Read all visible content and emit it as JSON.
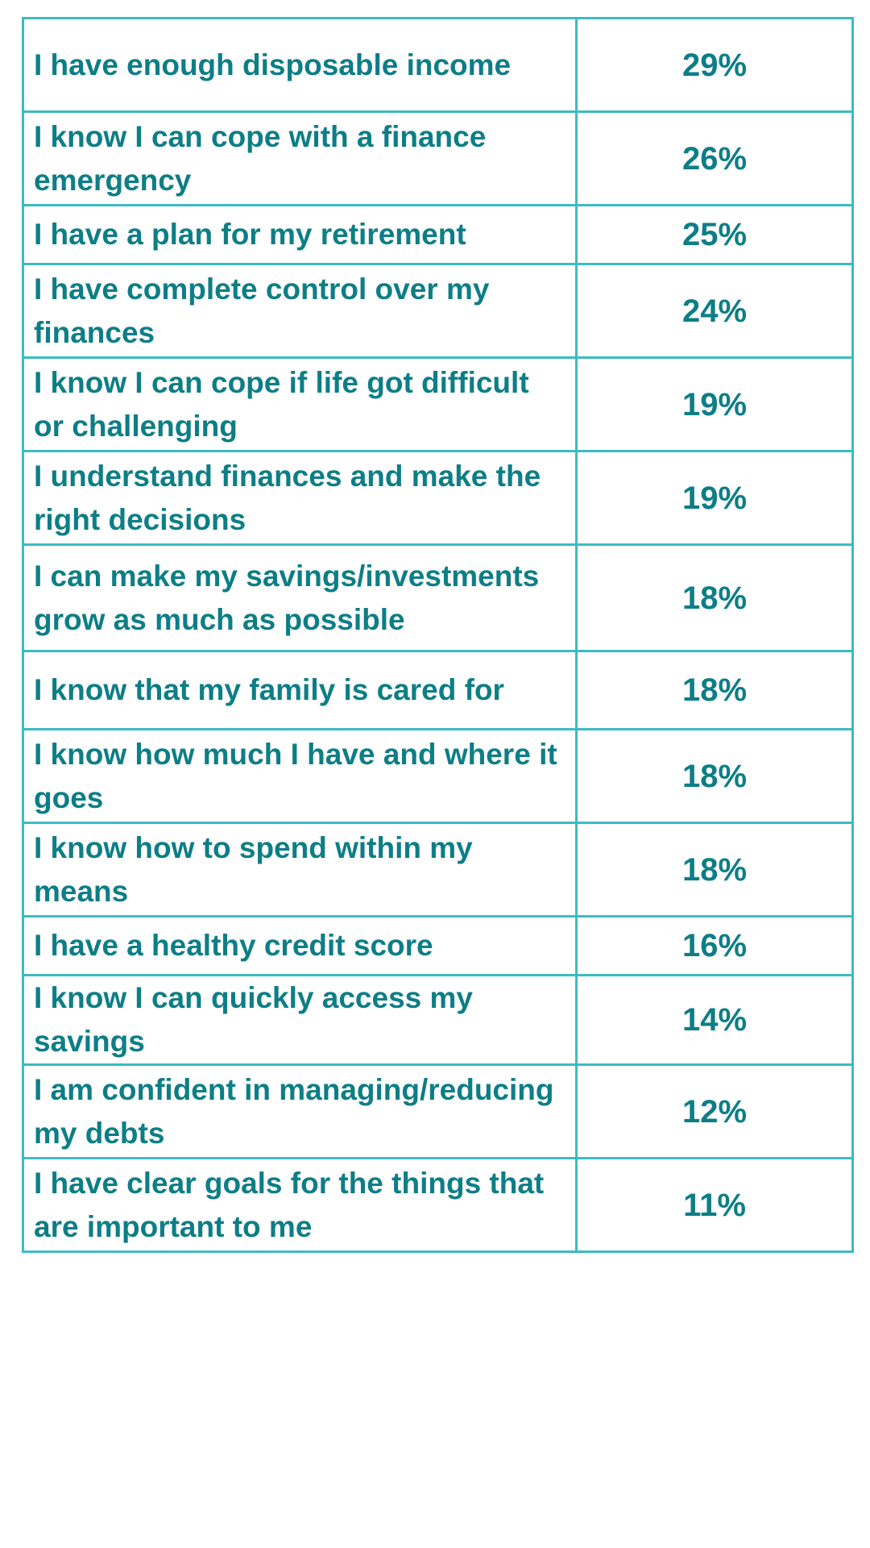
{
  "table": {
    "colors": {
      "border": "#3bbcc1",
      "text": "#0d7e86",
      "background": "#ffffff"
    },
    "rows": [
      {
        "statement": "I have enough disposable income",
        "value": "29%"
      },
      {
        "statement": "I know I can cope with a finance emergency",
        "value": "26%"
      },
      {
        "statement": "I have a plan for my retirement",
        "value": "25%"
      },
      {
        "statement": "I have complete control over my finances",
        "value": "24%"
      },
      {
        "statement": "I know I can cope if life got difficult or challenging",
        "value": "19%"
      },
      {
        "statement": "I understand finances and make the right decisions",
        "value": "19%"
      },
      {
        "statement": "I can make my savings/investments grow as much as possible",
        "value": "18%"
      },
      {
        "statement": "I know that my family is cared for",
        "value": "18%"
      },
      {
        "statement": "I know how much I have and where it goes",
        "value": "18%"
      },
      {
        "statement": "I know how to spend within my means",
        "value": "18%"
      },
      {
        "statement": "I have a healthy credit score",
        "value": "16%"
      },
      {
        "statement": "I know I can quickly access my savings",
        "value": "14%"
      },
      {
        "statement": "I am confident in managing/reducing my debts",
        "value": "12%"
      },
      {
        "statement": "I have clear goals for the things that are important to me",
        "value": "11%"
      }
    ]
  }
}
